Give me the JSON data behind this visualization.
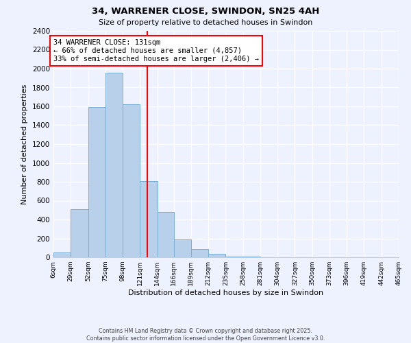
{
  "title": "34, WARRENER CLOSE, SWINDON, SN25 4AH",
  "subtitle": "Size of property relative to detached houses in Swindon",
  "xlabel": "Distribution of detached houses by size in Swindon",
  "ylabel": "Number of detached properties",
  "bar_color": "#b8d0ea",
  "bar_edge_color": "#7aaed4",
  "vline_x": 131,
  "vline_color": "red",
  "annotation_title": "34 WARRENER CLOSE: 131sqm",
  "annotation_line1": "← 66% of detached houses are smaller (4,857)",
  "annotation_line2": "33% of semi-detached houses are larger (2,406) →",
  "bin_edges": [
    6,
    29,
    52,
    75,
    98,
    121,
    144,
    166,
    189,
    212,
    235,
    258,
    281,
    304,
    327,
    350,
    373,
    396,
    419,
    442,
    465
  ],
  "bin_counts": [
    50,
    510,
    1590,
    1960,
    1620,
    810,
    480,
    190,
    90,
    35,
    10,
    5,
    2,
    0,
    0,
    0,
    0,
    0,
    1,
    0
  ],
  "ylim": [
    0,
    2400
  ],
  "yticks": [
    0,
    200,
    400,
    600,
    800,
    1000,
    1200,
    1400,
    1600,
    1800,
    2000,
    2200,
    2400
  ],
  "footer1": "Contains HM Land Registry data © Crown copyright and database right 2025.",
  "footer2": "Contains public sector information licensed under the Open Government Licence v3.0.",
  "background_color": "#eef2ff"
}
